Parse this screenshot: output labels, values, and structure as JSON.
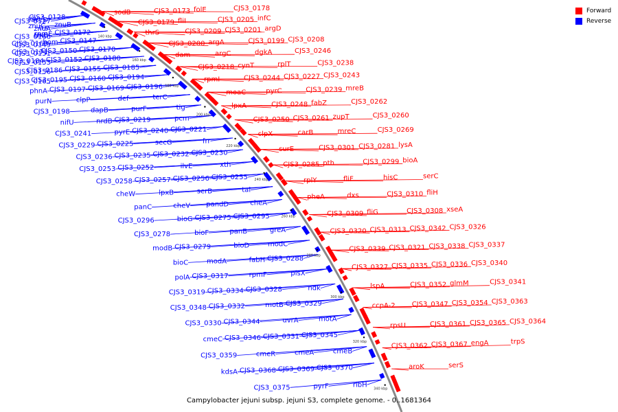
{
  "legend": {
    "forward_label": "Forward",
    "reverse_label": "Reverse",
    "forward_color": "#ff0000",
    "reverse_color": "#0000ff"
  },
  "caption": "Campylobacter jejuni subsp. jejuni S3, complete genome. - 0..1681364",
  "ticks": [
    "140 kbp",
    "160 kbp",
    "180 kbp",
    "200 kbp",
    "220 kbp",
    "240 kbp",
    "260 kbp",
    "280 kbp",
    "300 kbp",
    "320 kbp",
    "340 kbp"
  ],
  "forward_genes": [
    "sodB",
    "CJS3_0173",
    "folE",
    "CJS3_0178",
    "CJS3_0179",
    "fliI",
    "CJS3_0205",
    "infC",
    "thrS",
    "CJS3_0209",
    "CJS3_0201",
    "argD",
    "CJS3_0200",
    "argA",
    "CJS3_0199",
    "CJS3_0208",
    "dam",
    "argC",
    "dgkA",
    "CJS3_0246",
    "CJS3_0218",
    "cynT",
    "rplT",
    "CJS3_0238",
    "rpmI",
    "CJS3_0244",
    "CJS3_0227",
    "CJS3_0243",
    "moaC",
    "pyrC",
    "CJS3_0239",
    "mreB",
    "lpxA",
    "CJS3_0248",
    "fabZ",
    "CJS3_0262",
    "CJS3_0250",
    "CJS3_0261",
    "zupT",
    "CJS3_0260",
    "clpX",
    "carB",
    "mreC",
    "CJS3_0269",
    "surE",
    "CJS3_0301",
    "CJS3_0281",
    "lysA",
    "CJS3_0285",
    "pth",
    "CJS3_0299",
    "bioA",
    "rplY",
    "fliF",
    "hisC",
    "serC",
    "pheA",
    "dxs",
    "CJS3_0310",
    "fliH",
    "CJS3_0309",
    "fliG",
    "CJS3_0308",
    "xseA",
    "CJS3_0320",
    "CJS3_0313",
    "CJS3_0342",
    "CJS3_0326",
    "CJS3_0339",
    "CJS3_0321",
    "CJS3_0338",
    "CJS3_0337",
    "CJS3_0327",
    "CJS3_0335",
    "CJS3_0336",
    "CJS3_0340",
    "lspA",
    "CJS3_0352",
    "glmM",
    "CJS3_0341",
    "ccpA-2",
    "CJS3_0347",
    "CJS3_0354",
    "CJS3_0363",
    "rpsU",
    "CJS3_0361",
    "CJS3_0365",
    "CJS3_0364",
    "CJS3_0362",
    "CJS3_0367",
    "engA",
    "trpS",
    "aroK",
    "serS"
  ],
  "reverse_genes": [
    "CJS3_0128",
    "ybeA",
    "accD",
    "CJS3_0127",
    "znuB",
    "znuC",
    "trx",
    "znuA",
    "CJS3_0172",
    "rpmE",
    "trxB",
    "CJS3_0166",
    "CJS3_0147",
    "hom",
    "CJS3_0168",
    "CJS3_0149",
    "CJS3_0170",
    "CJS3_0150",
    "CJS3_0171",
    "CJS3_0151",
    "CJS3_0180",
    "CJS3_0152",
    "CJS3_0184",
    "CJS3_0153",
    "CJS3_0185",
    "CJS3_0155",
    "CJS3_0186",
    "CJS3_0156",
    "CJS3_0194",
    "CJS3_0160",
    "CJS3_0195",
    "CJS3_0165",
    "CJS3_0196",
    "CJS3_0169",
    "CJS3_0197",
    "phnA",
    "terC",
    "def",
    "clpP",
    "purN",
    "tig",
    "purF",
    "dapB",
    "CJS3_0198",
    "pcm",
    "CJS3_0219",
    "nrdB",
    "nifU",
    "CJS3_0221",
    "CJS3_0240",
    "pyrE",
    "CJS3_0241",
    "frr",
    "secG",
    "CJS3_0225",
    "CJS3_0229",
    "CJS3_0230",
    "CJS3_0232",
    "CJS3_0235",
    "CJS3_0236",
    "xth",
    "ilvE",
    "CJS3_0252",
    "CJS3_0253",
    "CJS3_0255",
    "CJS3_0256",
    "CJS3_0257",
    "CJS3_0258",
    "tal",
    "serB",
    "lpxB",
    "cheW",
    "cheA",
    "pandD",
    "cheV",
    "panC",
    "CJS3_0295",
    "CJS3_0275",
    "bioG",
    "CJS3_0296",
    "greA",
    "panB",
    "bioF",
    "CJS3_0278",
    "modC",
    "bioD",
    "CJS3_0279",
    "modB",
    "CJS3_0288",
    "fabH",
    "modA",
    "bioC",
    "plsX",
    "rpmF",
    "CJS3_0317",
    "polA",
    "ndk",
    "CJS3_0328",
    "CJS3_0334",
    "CJS3_0319",
    "CJS3_0329",
    "motB",
    "CJS3_0332",
    "CJS3_0348",
    "motA",
    "uvrA",
    "CJS3_0344",
    "CJS3_0330",
    "CJS3_0345",
    "CJS3_0331",
    "CJS3_0346",
    "cmeC",
    "cmeB",
    "cmeA",
    "cmeR",
    "CJS3_0359",
    "CJS3_0370",
    "CJS3_0369",
    "CJS3_0368",
    "kdsA",
    "ribH",
    "pyrF",
    "CJS3_0375"
  ]
}
